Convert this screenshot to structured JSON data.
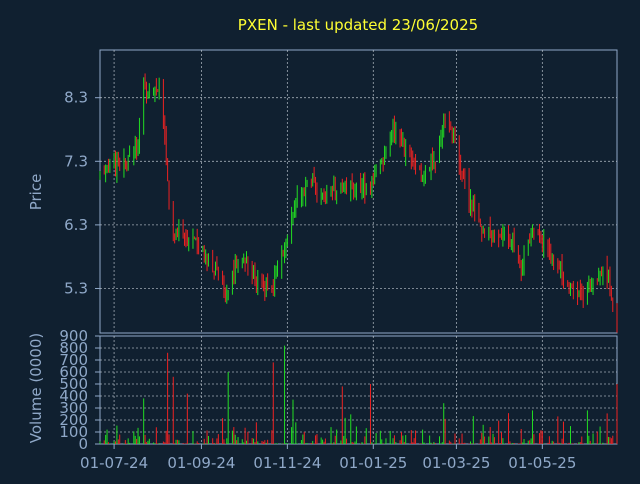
{
  "colors": {
    "background": "#102030",
    "up": "#22dd22",
    "down": "#ee2222",
    "text": "#8fa8c8",
    "title": "#ffff33",
    "grid": "#d0d8e0"
  },
  "chart_data": [
    {
      "type": "candlestick",
      "title": "PXEN - last updated 23/06/2025",
      "ylabel": "Price",
      "ylim": [
        4.6,
        9.05
      ],
      "yticks": [
        5.3,
        6.3,
        7.3,
        8.3
      ],
      "ytick_labels": [
        "5.3",
        "6.3",
        "7.3",
        "8.3"
      ],
      "xlim": [
        "2024-06-21",
        "2025-06-23"
      ],
      "grid": true,
      "series": [
        {
          "anchors": [
            [
              "2024-06-21",
              7.05
            ],
            [
              "2024-07-01",
              7.2
            ],
            [
              "2024-07-10",
              7.25
            ],
            [
              "2024-07-18",
              7.65
            ],
            [
              "2024-07-22",
              8.4
            ],
            [
              "2024-07-28",
              8.3
            ],
            [
              "2024-08-02",
              8.5
            ],
            [
              "2024-08-06",
              7.6
            ],
            [
              "2024-08-10",
              6.2
            ],
            [
              "2024-08-20",
              6.2
            ],
            [
              "2024-08-28",
              6.05
            ],
            [
              "2024-09-05",
              5.7
            ],
            [
              "2024-09-12",
              5.55
            ],
            [
              "2024-09-18",
              5.2
            ],
            [
              "2024-09-28",
              5.8
            ],
            [
              "2024-10-08",
              5.5
            ],
            [
              "2024-10-15",
              5.3
            ],
            [
              "2024-10-22",
              5.35
            ],
            [
              "2024-10-30",
              6.0
            ],
            [
              "2024-11-08",
              6.7
            ],
            [
              "2024-11-18",
              7.0
            ],
            [
              "2024-11-28",
              6.8
            ],
            [
              "2024-12-15",
              6.9
            ],
            [
              "2024-12-28",
              6.85
            ],
            [
              "2025-01-06",
              7.2
            ],
            [
              "2025-01-15",
              7.8
            ],
            [
              "2025-01-28",
              7.3
            ],
            [
              "2025-02-05",
              7.05
            ],
            [
              "2025-02-15",
              7.4
            ],
            [
              "2025-02-22",
              8.1
            ],
            [
              "2025-03-03",
              7.2
            ],
            [
              "2025-03-12",
              6.6
            ],
            [
              "2025-03-22",
              6.15
            ],
            [
              "2025-04-02",
              6.1
            ],
            [
              "2025-04-10",
              6.05
            ],
            [
              "2025-04-16",
              5.6
            ],
            [
              "2025-04-25",
              6.3
            ],
            [
              "2025-05-05",
              5.85
            ],
            [
              "2025-05-10",
              5.8
            ],
            [
              "2025-05-18",
              5.35
            ],
            [
              "2025-05-28",
              5.15
            ],
            [
              "2025-06-05",
              5.4
            ],
            [
              "2025-06-15",
              5.6
            ],
            [
              "2025-06-23",
              4.75
            ]
          ]
        }
      ]
    },
    {
      "type": "bar",
      "ylabel": "Volume (0000)",
      "ylim": [
        0,
        900
      ],
      "yticks": [
        0,
        100,
        200,
        300,
        400,
        500,
        600,
        700,
        800,
        900
      ],
      "ytick_labels": [
        "0",
        "100",
        "200",
        "300",
        "400",
        "500",
        "600",
        "700",
        "800",
        "900"
      ],
      "x_ticks": [
        "2024-07-01",
        "2024-09-01",
        "2024-11-01",
        "2025-01-01",
        "2025-03-01",
        "2025-05-01"
      ],
      "x_tick_labels": [
        "01-07-24",
        "01-09-24",
        "01-11-24",
        "01-01-25",
        "01-03-25",
        "01-05-25"
      ],
      "spikes": [
        [
          "2024-06-26",
          120
        ],
        [
          "2024-07-22",
          380
        ],
        [
          "2024-08-08",
          760
        ],
        [
          "2024-08-12",
          560
        ],
        [
          "2024-08-22",
          420
        ],
        [
          "2024-09-20",
          600
        ],
        [
          "2024-10-22",
          680
        ],
        [
          "2024-10-30",
          820
        ],
        [
          "2024-11-05",
          370
        ],
        [
          "2024-12-10",
          480
        ],
        [
          "2024-12-30",
          500
        ],
        [
          "2025-02-20",
          340
        ],
        [
          "2025-04-24",
          280
        ],
        [
          "2025-05-12",
          230
        ],
        [
          "2025-06-02",
          280
        ],
        [
          "2025-06-23",
          500
        ]
      ]
    }
  ]
}
